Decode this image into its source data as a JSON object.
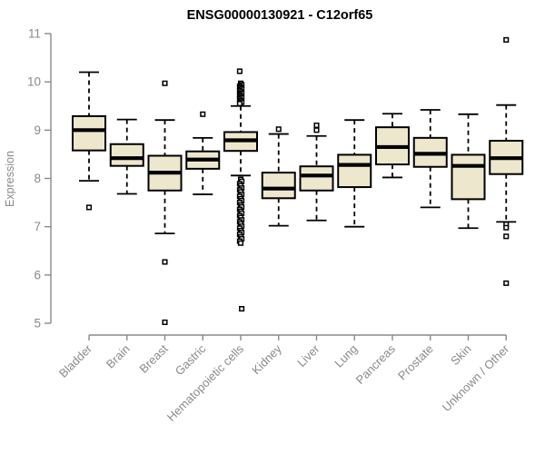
{
  "chart_data": {
    "type": "boxplot",
    "title": "ENSG00000130921 - C12orf65",
    "ylabel": "Expression",
    "xlabel": "",
    "ylim": [
      5,
      11
    ],
    "yticks": [
      5,
      6,
      7,
      8,
      9,
      10,
      11
    ],
    "grid": false,
    "legend": "none",
    "colors": {
      "box_fill": "#EDE8CD",
      "box_border": "#000000",
      "median": "#000000",
      "whisker": "#000000",
      "outlier": "#000000",
      "axis": "#8A8A8A",
      "title": "#000000"
    },
    "categories": [
      "Bladder",
      "Brain",
      "Breast",
      "Gastric",
      "Hematopoietic cells",
      "Kidney",
      "Liver",
      "Lung",
      "Pancreas",
      "Prostate",
      "Skin",
      "Unknown / Other"
    ],
    "series": [
      {
        "category": "Bladder",
        "whisker_low": 7.95,
        "q1": 8.58,
        "median": 9.0,
        "q3": 9.29,
        "whisker_high": 10.2,
        "outliers": [
          7.4
        ]
      },
      {
        "category": "Brain",
        "whisker_low": 7.68,
        "q1": 8.26,
        "median": 8.42,
        "q3": 8.71,
        "whisker_high": 9.22,
        "outliers": []
      },
      {
        "category": "Breast",
        "whisker_low": 6.86,
        "q1": 7.75,
        "median": 8.12,
        "q3": 8.47,
        "whisker_high": 9.21,
        "outliers": [
          9.97,
          6.27,
          5.02
        ]
      },
      {
        "category": "Gastric",
        "whisker_low": 7.67,
        "q1": 8.2,
        "median": 8.39,
        "q3": 8.56,
        "whisker_high": 8.84,
        "outliers": [
          9.33
        ]
      },
      {
        "category": "Hematopoietic cells",
        "whisker_low": 8.06,
        "q1": 8.57,
        "median": 8.79,
        "q3": 8.96,
        "whisker_high": 9.5,
        "outliers": [
          10.22,
          9.97,
          9.94,
          9.91,
          9.88,
          9.85,
          9.82,
          9.79,
          9.76,
          9.73,
          9.7,
          9.67,
          9.64,
          9.61,
          9.58,
          9.55,
          7.98,
          7.94,
          7.89,
          7.85,
          7.8,
          7.76,
          7.72,
          7.67,
          7.63,
          7.58,
          7.54,
          7.5,
          7.45,
          7.41,
          7.36,
          7.32,
          7.28,
          7.23,
          7.19,
          7.14,
          7.1,
          7.06,
          7.01,
          6.97,
          6.92,
          6.88,
          6.84,
          6.79,
          6.75,
          6.7,
          6.66,
          5.3
        ]
      },
      {
        "category": "Kidney",
        "whisker_low": 7.02,
        "q1": 7.59,
        "median": 7.79,
        "q3": 8.12,
        "whisker_high": 8.92,
        "outliers": [
          9.02
        ]
      },
      {
        "category": "Liver",
        "whisker_low": 7.13,
        "q1": 7.75,
        "median": 8.06,
        "q3": 8.25,
        "whisker_high": 8.88,
        "outliers": [
          9.1,
          9.0
        ]
      },
      {
        "category": "Lung",
        "whisker_low": 7.0,
        "q1": 7.82,
        "median": 8.28,
        "q3": 8.49,
        "whisker_high": 9.21,
        "outliers": []
      },
      {
        "category": "Pancreas",
        "whisker_low": 8.02,
        "q1": 8.29,
        "median": 8.65,
        "q3": 9.06,
        "whisker_high": 9.34,
        "outliers": []
      },
      {
        "category": "Prostate",
        "whisker_low": 7.4,
        "q1": 8.24,
        "median": 8.51,
        "q3": 8.84,
        "whisker_high": 9.42,
        "outliers": []
      },
      {
        "category": "Skin",
        "whisker_low": 6.97,
        "q1": 7.57,
        "median": 8.26,
        "q3": 8.49,
        "whisker_high": 9.33,
        "outliers": []
      },
      {
        "category": "Unknown / Other",
        "whisker_low": 7.1,
        "q1": 8.09,
        "median": 8.42,
        "q3": 8.78,
        "whisker_high": 9.52,
        "outliers": [
          10.87,
          7.05,
          6.98,
          6.8,
          5.83
        ]
      }
    ]
  }
}
